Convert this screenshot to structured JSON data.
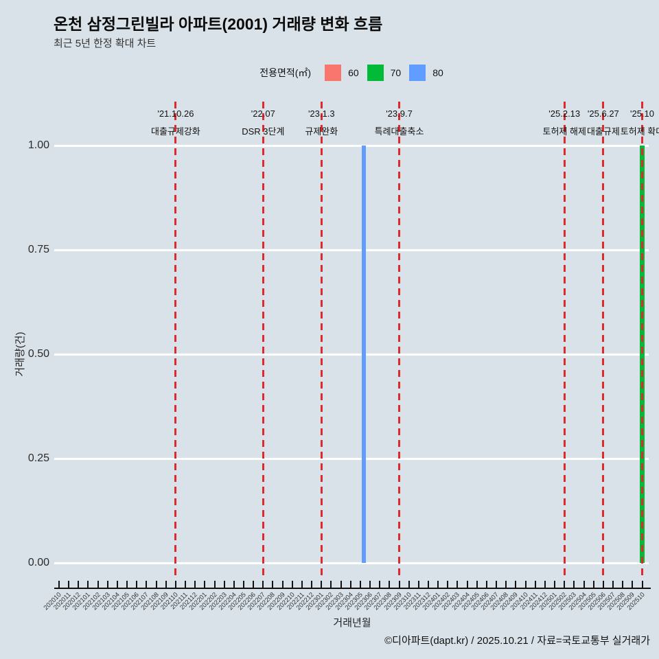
{
  "title": "온천 삼정그린빌라 아파트(2001) 거래량 변화 흐름",
  "subtitle": "최근 5년 한정 확대 차트",
  "legend": {
    "title": "전용면적(㎡)",
    "items": [
      {
        "label": "60",
        "color": "#F8766D"
      },
      {
        "label": "70",
        "color": "#00BA38"
      },
      {
        "label": "80",
        "color": "#619CFF"
      }
    ]
  },
  "footer": "©디아파트(dapt.kr) / 2025.10.21 / 자료=국토교통부 실거래가",
  "colors": {
    "background": "#d9e2e8",
    "gridline": "#ffffff",
    "event_line_red": "#dc2a2d",
    "axis": "#111111"
  },
  "chart_data": {
    "type": "bar",
    "title": "온천 삼정그린빌라 아파트(2001) 거래량 변화 흐름",
    "subtitle": "최근 5년 한정 확대 차트",
    "xlabel": "거래년월",
    "ylabel": "거래량(건)",
    "ylim": [
      0,
      1
    ],
    "grid": "horizontal",
    "legend_position": "top-center",
    "yticks": [
      {
        "label": "1.00",
        "value": 1.0
      },
      {
        "label": "0.75",
        "value": 0.75
      },
      {
        "label": "0.50",
        "value": 0.5
      },
      {
        "label": "0.25",
        "value": 0.25
      },
      {
        "label": "0.00",
        "value": 0.0
      }
    ],
    "categories": [
      "202010",
      "202011",
      "202012",
      "202101",
      "202102",
      "202103",
      "202104",
      "202105",
      "202106",
      "202107",
      "202108",
      "202109",
      "202110",
      "202111",
      "202112",
      "202201",
      "202202",
      "202203",
      "202204",
      "202205",
      "202206",
      "202207",
      "202208",
      "202209",
      "202210",
      "202211",
      "202212",
      "202301",
      "202302",
      "202303",
      "202304",
      "202305",
      "202306",
      "202307",
      "202308",
      "202309",
      "202310",
      "202311",
      "202312",
      "202401",
      "202402",
      "202403",
      "202404",
      "202405",
      "202406",
      "202407",
      "202408",
      "202409",
      "202410",
      "202411",
      "202412",
      "202501",
      "202502",
      "202503",
      "202504",
      "202505",
      "202506",
      "202507",
      "202508",
      "202509",
      "202510"
    ],
    "series": [
      {
        "name": "60",
        "color": "#F8766D",
        "points": []
      },
      {
        "name": "70",
        "color": "#00BA38",
        "points": [
          {
            "category": "202510",
            "value": 1
          }
        ]
      },
      {
        "name": "80",
        "color": "#619CFF",
        "points": [
          {
            "category": "202305",
            "value": 1
          }
        ]
      }
    ],
    "events": [
      {
        "date": "'21.10.26",
        "label": "대출규제강화",
        "month": "202110"
      },
      {
        "date": "'22.07",
        "label": "DSR 3단계",
        "month": "202207"
      },
      {
        "date": "'23.1.3",
        "label": "규제완화",
        "month": "202301"
      },
      {
        "date": "'23.9.7",
        "label": "특례대출축소",
        "month": "202309"
      },
      {
        "date": "'25.2.13",
        "label": "토허제 해제",
        "month": "202502"
      },
      {
        "date": "'25.6.27",
        "label": "대출규제",
        "month": "202506"
      },
      {
        "date": "'25.10",
        "label": "토허제 확대",
        "month": "202510"
      }
    ]
  }
}
